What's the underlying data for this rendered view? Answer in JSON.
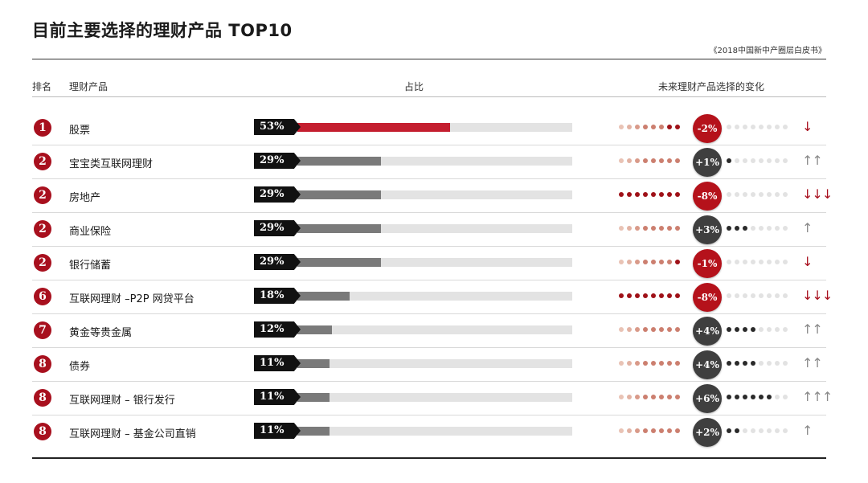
{
  "title": "目前主要选择的理财产品 TOP10",
  "source": "《2018中国新中产圈层白皮书》",
  "headers": {
    "rank": "排名",
    "product": "理财产品",
    "share": "占比",
    "change": "未来理财产品选择的变化"
  },
  "colors": {
    "accent": "#c41e2f",
    "rank_badge": "#a8101e",
    "positive_bubble": "#3f3f3f",
    "negative_bubble": "#b5121b",
    "bar": "#7a7a7a",
    "track": "#e3e3e3"
  },
  "chart_data": {
    "type": "bar",
    "orientation": "horizontal",
    "title": "目前主要选择的理财产品 TOP10",
    "categories": [
      "股票",
      "宝宝类互联网理财",
      "房地产",
      "商业保险",
      "银行储蓄",
      "互联网理财 –P2P 网贷平台",
      "黄金等贵金属",
      "债券",
      "互联网理财 – 银行发行",
      "互联网理财 – 基金公司直销"
    ],
    "values": [
      53,
      29,
      29,
      29,
      29,
      18,
      12,
      11,
      11,
      11
    ],
    "value_unit": "%",
    "xlim": [
      0,
      100
    ],
    "rows": [
      {
        "rank": "1",
        "product": "股票",
        "share_label": "53%",
        "share": 53,
        "change_label": "-2%",
        "change": -2,
        "arrows": "↓"
      },
      {
        "rank": "2",
        "product": "宝宝类互联网理财",
        "share_label": "29%",
        "share": 29,
        "change_label": "+1%",
        "change": 1,
        "arrows": "↑↑"
      },
      {
        "rank": "2",
        "product": "房地产",
        "share_label": "29%",
        "share": 29,
        "change_label": "-8%",
        "change": -8,
        "arrows": "↓↓↓"
      },
      {
        "rank": "2",
        "product": "商业保险",
        "share_label": "29%",
        "share": 29,
        "change_label": "+3%",
        "change": 3,
        "arrows": "↑"
      },
      {
        "rank": "2",
        "product": "银行储蓄",
        "share_label": "29%",
        "share": 29,
        "change_label": "-1%",
        "change": -1,
        "arrows": "↓"
      },
      {
        "rank": "6",
        "product": "互联网理财 –P2P 网贷平台",
        "share_label": "18%",
        "share": 18,
        "change_label": "-8%",
        "change": -8,
        "arrows": "↓↓↓"
      },
      {
        "rank": "7",
        "product": "黄金等贵金属",
        "share_label": "12%",
        "share": 12,
        "change_label": "+4%",
        "change": 4,
        "arrows": "↑↑"
      },
      {
        "rank": "8",
        "product": "债券",
        "share_label": "11%",
        "share": 11,
        "change_label": "+4%",
        "change": 4,
        "arrows": "↑↑"
      },
      {
        "rank": "8",
        "product": "互联网理财 – 银行发行",
        "share_label": "11%",
        "share": 11,
        "change_label": "+6%",
        "change": 6,
        "arrows": "↑↑↑"
      },
      {
        "rank": "8",
        "product": "互联网理财 – 基金公司直销",
        "share_label": "11%",
        "share": 11,
        "change_label": "+2%",
        "change": 2,
        "arrows": "↑"
      }
    ]
  }
}
